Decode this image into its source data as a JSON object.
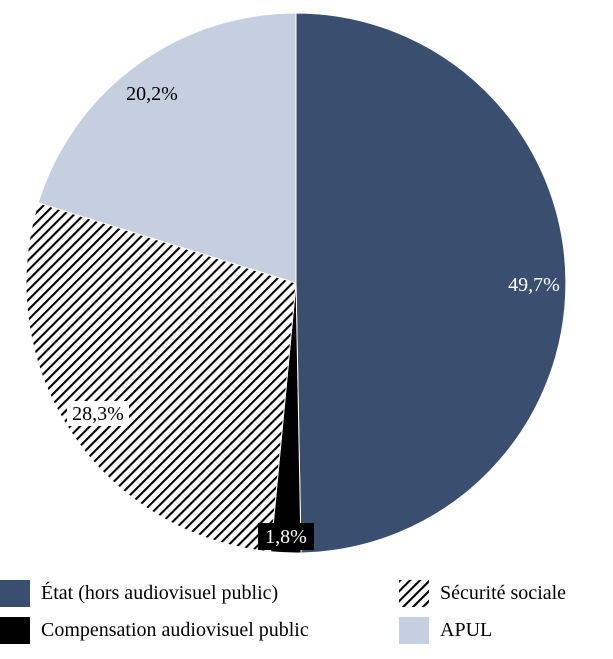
{
  "chart_data": {
    "type": "pie",
    "title": "",
    "start": "top, clockwise",
    "slices": [
      {
        "label": "État (hors audiovisuel public)",
        "value": 49.7,
        "display": "49,7%",
        "color": "#3a4f70",
        "pattern": "solid",
        "label_color": "#ffffff"
      },
      {
        "label": "Compensation audiovisuel public",
        "value": 1.8,
        "display": "1,8%",
        "color": "#000000",
        "pattern": "solid",
        "label_color": "#ffffff"
      },
      {
        "label": "Sécurité sociale",
        "value": 28.3,
        "display": "28,3%",
        "color": "#000000",
        "pattern": "hatch",
        "label_color": "#000000"
      },
      {
        "label": "APUL",
        "value": 20.2,
        "display": "20,2%",
        "color": "#c5cfe0",
        "pattern": "solid",
        "label_color": "#000000"
      }
    ],
    "legend_position": "bottom"
  },
  "legend": [
    {
      "label": "État (hors audiovisuel public)",
      "slice": 0
    },
    {
      "label": "Sécurité sociale",
      "slice": 2
    },
    {
      "label": "Compensation audiovisuel public",
      "slice": 1
    },
    {
      "label": "APUL",
      "slice": 3
    }
  ]
}
